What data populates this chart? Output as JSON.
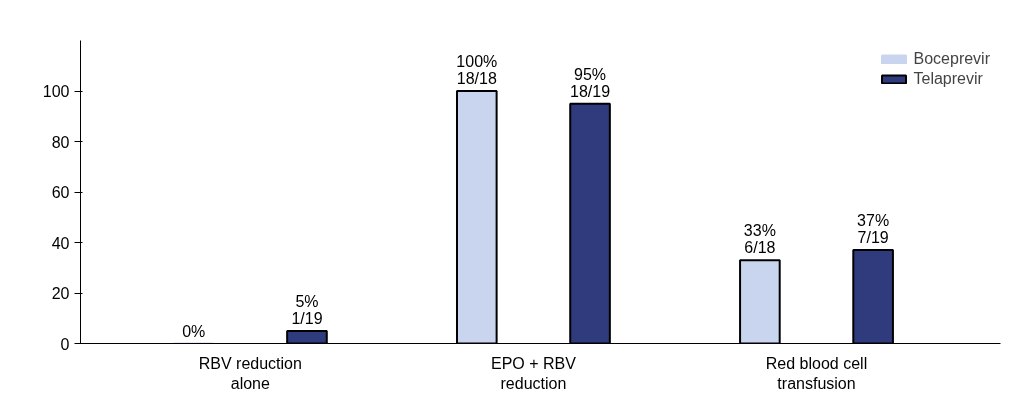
{
  "chart_data": {
    "type": "bar",
    "categories": [
      "RBV reduction\nalone",
      "EPO + RBV\nreduction",
      "Red blood cell\ntransfusion"
    ],
    "series": [
      {
        "name": "Boceprevir",
        "color": "#c9d5ef",
        "values": [
          0,
          100,
          33
        ],
        "value_labels": [
          "0%",
          "100%\n18/18",
          "33%\n6/18"
        ]
      },
      {
        "name": "Telaprevir",
        "color": "#2f3b7c",
        "values": [
          5,
          95,
          37
        ],
        "value_labels": [
          "5%\n1/19",
          "95%\n18/19",
          "37%\n7/19"
        ]
      }
    ],
    "ylim": [
      0,
      120
    ],
    "yticks": [
      0,
      20,
      40,
      60,
      80,
      100
    ],
    "grid": false,
    "legend": "top right"
  }
}
